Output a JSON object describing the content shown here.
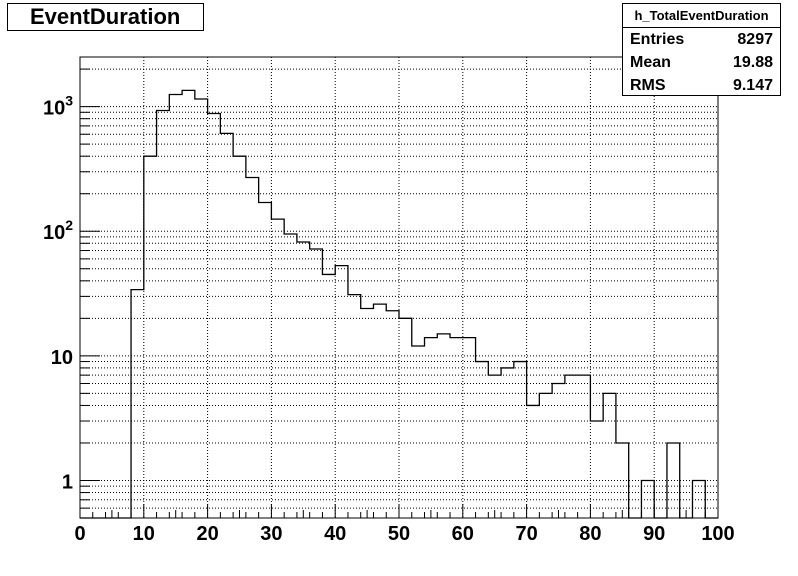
{
  "title": "EventDuration",
  "stats": {
    "name": "h_TotalEventDuration",
    "rows": [
      {
        "label": "Entries",
        "value": "8297"
      },
      {
        "label": "Mean",
        "value": "19.88"
      },
      {
        "label": "RMS",
        "value": "9.147"
      }
    ]
  },
  "chart_data": {
    "type": "bar",
    "histogram": true,
    "title": "EventDuration",
    "xlabel": "",
    "ylabel": "",
    "xlim": [
      0,
      100
    ],
    "ylim": [
      0.5,
      2500
    ],
    "y_scale": "log",
    "grid": true,
    "bin_width": 2,
    "bin_edges_start": 0,
    "values": [
      0,
      0,
      0,
      0,
      34,
      400,
      930,
      1250,
      1350,
      1150,
      880,
      610,
      400,
      270,
      170,
      125,
      95,
      82,
      72,
      45,
      53,
      31,
      24,
      26,
      23,
      20,
      12,
      14,
      15,
      14,
      14,
      9,
      7,
      8,
      9,
      4,
      5,
      6,
      7,
      7,
      3,
      5,
      2,
      0,
      1,
      0,
      2,
      0,
      1,
      0
    ],
    "x_ticks": [
      "0",
      "10",
      "20",
      "30",
      "40",
      "50",
      "60",
      "70",
      "80",
      "90",
      "100"
    ],
    "y_ticks": [
      {
        "value": 1,
        "label": "1"
      },
      {
        "value": 10,
        "label": "10"
      },
      {
        "value": 100,
        "label": "10",
        "exp": "2"
      },
      {
        "value": 1000,
        "label": "10",
        "exp": "3"
      }
    ]
  }
}
